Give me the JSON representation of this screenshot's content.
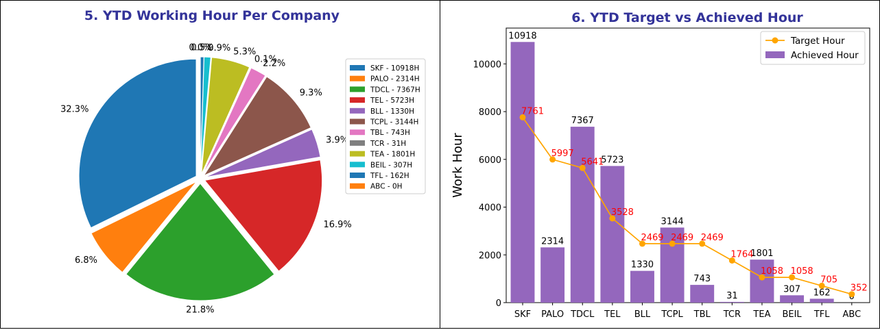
{
  "chart_data": [
    {
      "type": "pie",
      "title": "5. YTD Working Hour Per Company",
      "slices": [
        {
          "label": "SKF - 10918H",
          "value": 10918,
          "pct_label": "32.3%",
          "color": "#1f77b4"
        },
        {
          "label": "PALO - 2314H",
          "value": 2314,
          "pct_label": "6.8%",
          "color": "#ff7f0e"
        },
        {
          "label": "TDCL - 7367H",
          "value": 7367,
          "pct_label": "21.8%",
          "color": "#2ca02c"
        },
        {
          "label": "TEL - 5723H",
          "value": 5723,
          "pct_label": "16.9%",
          "color": "#d62728"
        },
        {
          "label": "BLL - 1330H",
          "value": 1330,
          "pct_label": "3.9%",
          "color": "#9467bd"
        },
        {
          "label": "TCPL - 3144H",
          "value": 3144,
          "pct_label": "9.3%",
          "color": "#8c564b"
        },
        {
          "label": "TBL - 743H",
          "value": 743,
          "pct_label": "2.2%",
          "color": "#e377c2"
        },
        {
          "label": "TCR - 31H",
          "value": 31,
          "pct_label": "0.1%",
          "color": "#7f7f7f"
        },
        {
          "label": "TEA - 1801H",
          "value": 1801,
          "pct_label": "5.3%",
          "color": "#bcbd22"
        },
        {
          "label": "BEIL - 307H",
          "value": 307,
          "pct_label": "0.9%",
          "color": "#17becf"
        },
        {
          "label": "TFL - 162H",
          "value": 162,
          "pct_label": "0.5%",
          "color": "#1f77b4"
        },
        {
          "label": "ABC - 0H",
          "value": 0,
          "pct_label": "0.0%",
          "color": "#ff7f0e"
        }
      ],
      "legend_position": "right"
    },
    {
      "type": "bar",
      "title": "6. YTD Target vs Achieved Hour",
      "categories": [
        "SKF",
        "PALO",
        "TDCL",
        "TEL",
        "BLL",
        "TCPL",
        "TBL",
        "TCR",
        "TEA",
        "BEIL",
        "TFL",
        "ABC"
      ],
      "series": [
        {
          "name": "Achieved Hour",
          "type": "bar",
          "color": "#9467bd",
          "values": [
            10918,
            2314,
            7367,
            5723,
            1330,
            3144,
            743,
            31,
            1801,
            307,
            162,
            0
          ]
        },
        {
          "name": "Target Hour",
          "type": "line",
          "color": "#ffa500",
          "label_color": "#ff0000",
          "values": [
            7761,
            5997,
            5641,
            3528,
            2469,
            2469,
            2469,
            1764,
            1058,
            1058,
            705,
            352
          ],
          "point_labels": [
            "7761",
            "5997",
            "5641",
            "3528",
            "2469",
            "2469",
            "2469",
            "1764",
            "1058",
            "1058",
            "705",
            "352"
          ]
        }
      ],
      "ylabel": "Work Hour",
      "xlabel": "",
      "ylim": [
        0,
        11500
      ],
      "yticks": [
        0,
        2000,
        4000,
        6000,
        8000,
        10000
      ],
      "legend_position": "top-right"
    }
  ]
}
